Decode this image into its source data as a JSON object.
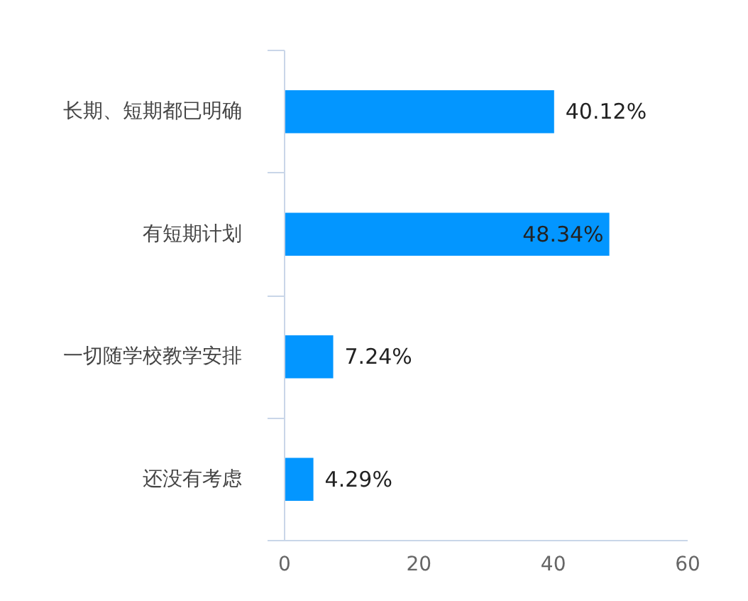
{
  "chart_data": {
    "type": "bar",
    "orientation": "horizontal",
    "categories": [
      "长期、短期都已明确",
      "有短期计划",
      "一切随学校教学安排",
      "还没有考虑"
    ],
    "values": [
      40.12,
      48.34,
      7.24,
      4.29
    ],
    "color": "#0396ff",
    "value_labels": [
      "40.12%",
      "48.34%",
      "7.24%",
      "4.29%"
    ],
    "xlim": [
      0,
      60
    ],
    "xticks": [
      0,
      20,
      40,
      60
    ]
  }
}
